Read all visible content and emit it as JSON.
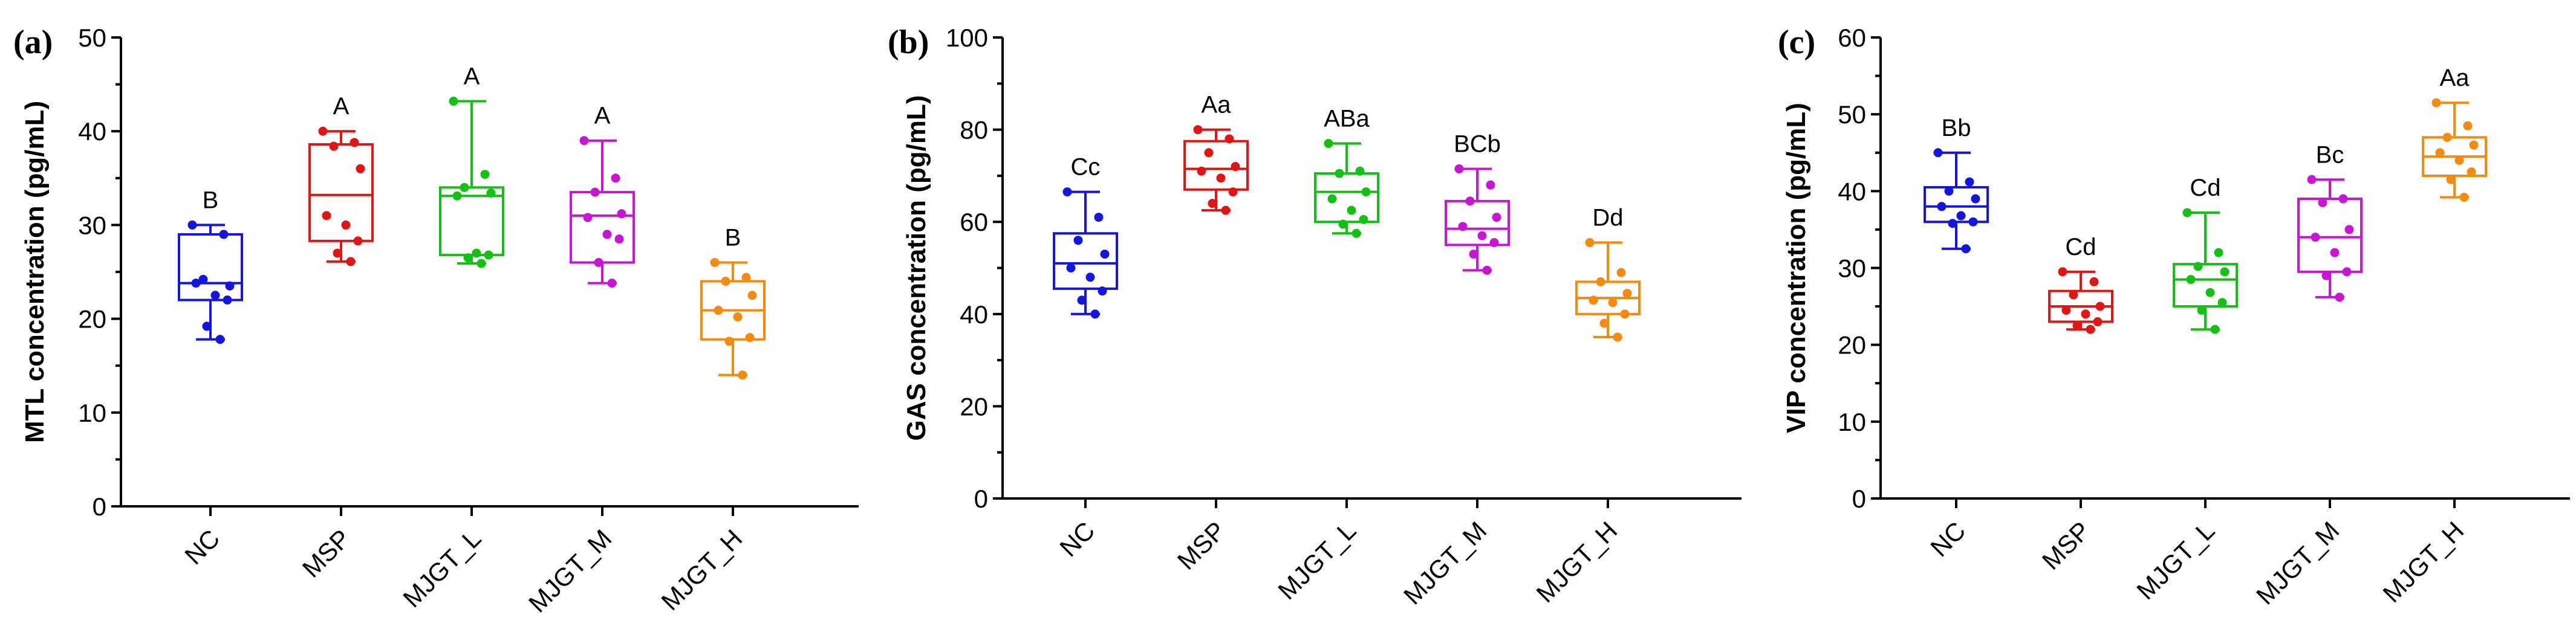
{
  "chart_data": [
    {
      "type": "box",
      "panel_label": "(a)",
      "ylabel": "MTL concentration (pg/mL)",
      "ylim": [
        0,
        50
      ],
      "yticks": [
        0,
        10,
        20,
        30,
        40,
        50
      ],
      "categories": [
        "NC",
        "MSP",
        "MJGT_L",
        "MJGT_M",
        "MJGT_H"
      ],
      "colors": [
        "#1515e0",
        "#e01515",
        "#15c015",
        "#c815d4",
        "#f58a10"
      ],
      "boxes": [
        {
          "min": 17.8,
          "q1": 22.0,
          "median": 23.8,
          "q3": 29.0,
          "max": 30.0,
          "sig": "B",
          "points": [
            30.0,
            29.0,
            24.2,
            23.5,
            23.8,
            22.5,
            22.0,
            19.2,
            17.8
          ]
        },
        {
          "min": 26.1,
          "q1": 28.3,
          "median": 33.2,
          "q3": 38.6,
          "max": 40.0,
          "sig": "A",
          "points": [
            40.0,
            38.8,
            38.4,
            36.0,
            31.0,
            30.0,
            28.3,
            27.0,
            26.1
          ]
        },
        {
          "min": 25.9,
          "q1": 26.8,
          "median": 33.1,
          "q3": 34.0,
          "max": 43.2,
          "sig": "A",
          "points": [
            43.2,
            35.4,
            34.0,
            33.4,
            33.1,
            27.0,
            26.8,
            26.5,
            25.9
          ]
        },
        {
          "min": 23.8,
          "q1": 26.0,
          "median": 31.0,
          "q3": 33.5,
          "max": 39.0,
          "sig": "A",
          "points": [
            39.0,
            35.0,
            33.5,
            31.2,
            30.8,
            29.0,
            28.5,
            26.0,
            23.8
          ]
        },
        {
          "min": 14.0,
          "q1": 17.8,
          "median": 20.9,
          "q3": 24.0,
          "max": 26.0,
          "sig": "B",
          "points": [
            26.0,
            24.4,
            24.0,
            22.5,
            20.9,
            20.2,
            18.0,
            17.6,
            14.0
          ]
        }
      ]
    },
    {
      "type": "box",
      "panel_label": "(b)",
      "ylabel": "GAS concentration (pg/mL)",
      "ylim": [
        0,
        100
      ],
      "yticks": [
        0,
        20,
        40,
        60,
        80,
        100
      ],
      "categories": [
        "NC",
        "MSP",
        "MJGT_L",
        "MJGT_M",
        "MJGT_H"
      ],
      "colors": [
        "#1515e0",
        "#e01515",
        "#15c015",
        "#c815d4",
        "#f58a10"
      ],
      "boxes": [
        {
          "min": 40.0,
          "q1": 45.5,
          "median": 51.0,
          "q3": 57.5,
          "max": 66.5,
          "sig": "Cc",
          "points": [
            66.5,
            61.0,
            56.0,
            53.0,
            50.0,
            48.0,
            45.0,
            43.0,
            40.0
          ]
        },
        {
          "min": 62.5,
          "q1": 67.0,
          "median": 71.5,
          "q3": 77.5,
          "max": 80.0,
          "sig": "Aa",
          "points": [
            80.0,
            78.0,
            75.0,
            72.0,
            71.0,
            69.5,
            66.5,
            64.0,
            62.5
          ]
        },
        {
          "min": 57.5,
          "q1": 60.0,
          "median": 66.5,
          "q3": 70.5,
          "max": 77.0,
          "sig": "ABa",
          "points": [
            77.0,
            71.0,
            70.5,
            66.5,
            65.0,
            62.5,
            60.5,
            59.5,
            57.5
          ]
        },
        {
          "min": 49.5,
          "q1": 55.0,
          "median": 58.5,
          "q3": 64.5,
          "max": 71.5,
          "sig": "BCb",
          "points": [
            71.5,
            68.0,
            64.5,
            61.0,
            59.0,
            57.0,
            55.5,
            53.0,
            49.5
          ]
        },
        {
          "min": 35.0,
          "q1": 40.0,
          "median": 43.5,
          "q3": 47.0,
          "max": 55.5,
          "sig": "Dd",
          "points": [
            55.5,
            49.0,
            47.0,
            44.5,
            43.0,
            42.5,
            40.0,
            38.0,
            35.0
          ]
        }
      ]
    },
    {
      "type": "box",
      "panel_label": "(c)",
      "ylabel": "VIP concentration (pg/mL)",
      "ylim": [
        0,
        60
      ],
      "yticks": [
        0,
        10,
        20,
        30,
        40,
        50,
        60
      ],
      "categories": [
        "NC",
        "MSP",
        "MJGT_L",
        "MJGT_M",
        "MJGT_H"
      ],
      "colors": [
        "#1515e0",
        "#e01515",
        "#15c015",
        "#c815d4",
        "#f58a10"
      ],
      "boxes": [
        {
          "min": 32.5,
          "q1": 36.0,
          "median": 38.0,
          "q3": 40.5,
          "max": 45.0,
          "sig": "Bb",
          "points": [
            45.0,
            41.2,
            40.0,
            39.0,
            38.0,
            36.8,
            36.0,
            35.8,
            32.5
          ]
        },
        {
          "min": 22.0,
          "q1": 23.0,
          "median": 25.0,
          "q3": 27.0,
          "max": 29.5,
          "sig": "Cd",
          "points": [
            29.5,
            28.2,
            26.5,
            25.0,
            24.5,
            24.0,
            23.0,
            22.5,
            22.0
          ]
        },
        {
          "min": 22.0,
          "q1": 25.0,
          "median": 28.5,
          "q3": 30.5,
          "max": 37.2,
          "sig": "Cd",
          "points": [
            37.2,
            32.0,
            30.2,
            29.5,
            28.5,
            26.8,
            25.5,
            24.5,
            22.0
          ]
        },
        {
          "min": 26.2,
          "q1": 29.5,
          "median": 34.0,
          "q3": 39.0,
          "max": 41.5,
          "sig": "Bc",
          "points": [
            41.5,
            39.0,
            38.5,
            35.0,
            34.0,
            32.0,
            29.5,
            29.0,
            26.2
          ]
        },
        {
          "min": 39.2,
          "q1": 42.0,
          "median": 44.5,
          "q3": 47.0,
          "max": 51.5,
          "sig": "Aa",
          "points": [
            51.5,
            48.5,
            47.0,
            46.0,
            45.0,
            44.0,
            42.5,
            41.5,
            39.2
          ]
        }
      ]
    }
  ]
}
